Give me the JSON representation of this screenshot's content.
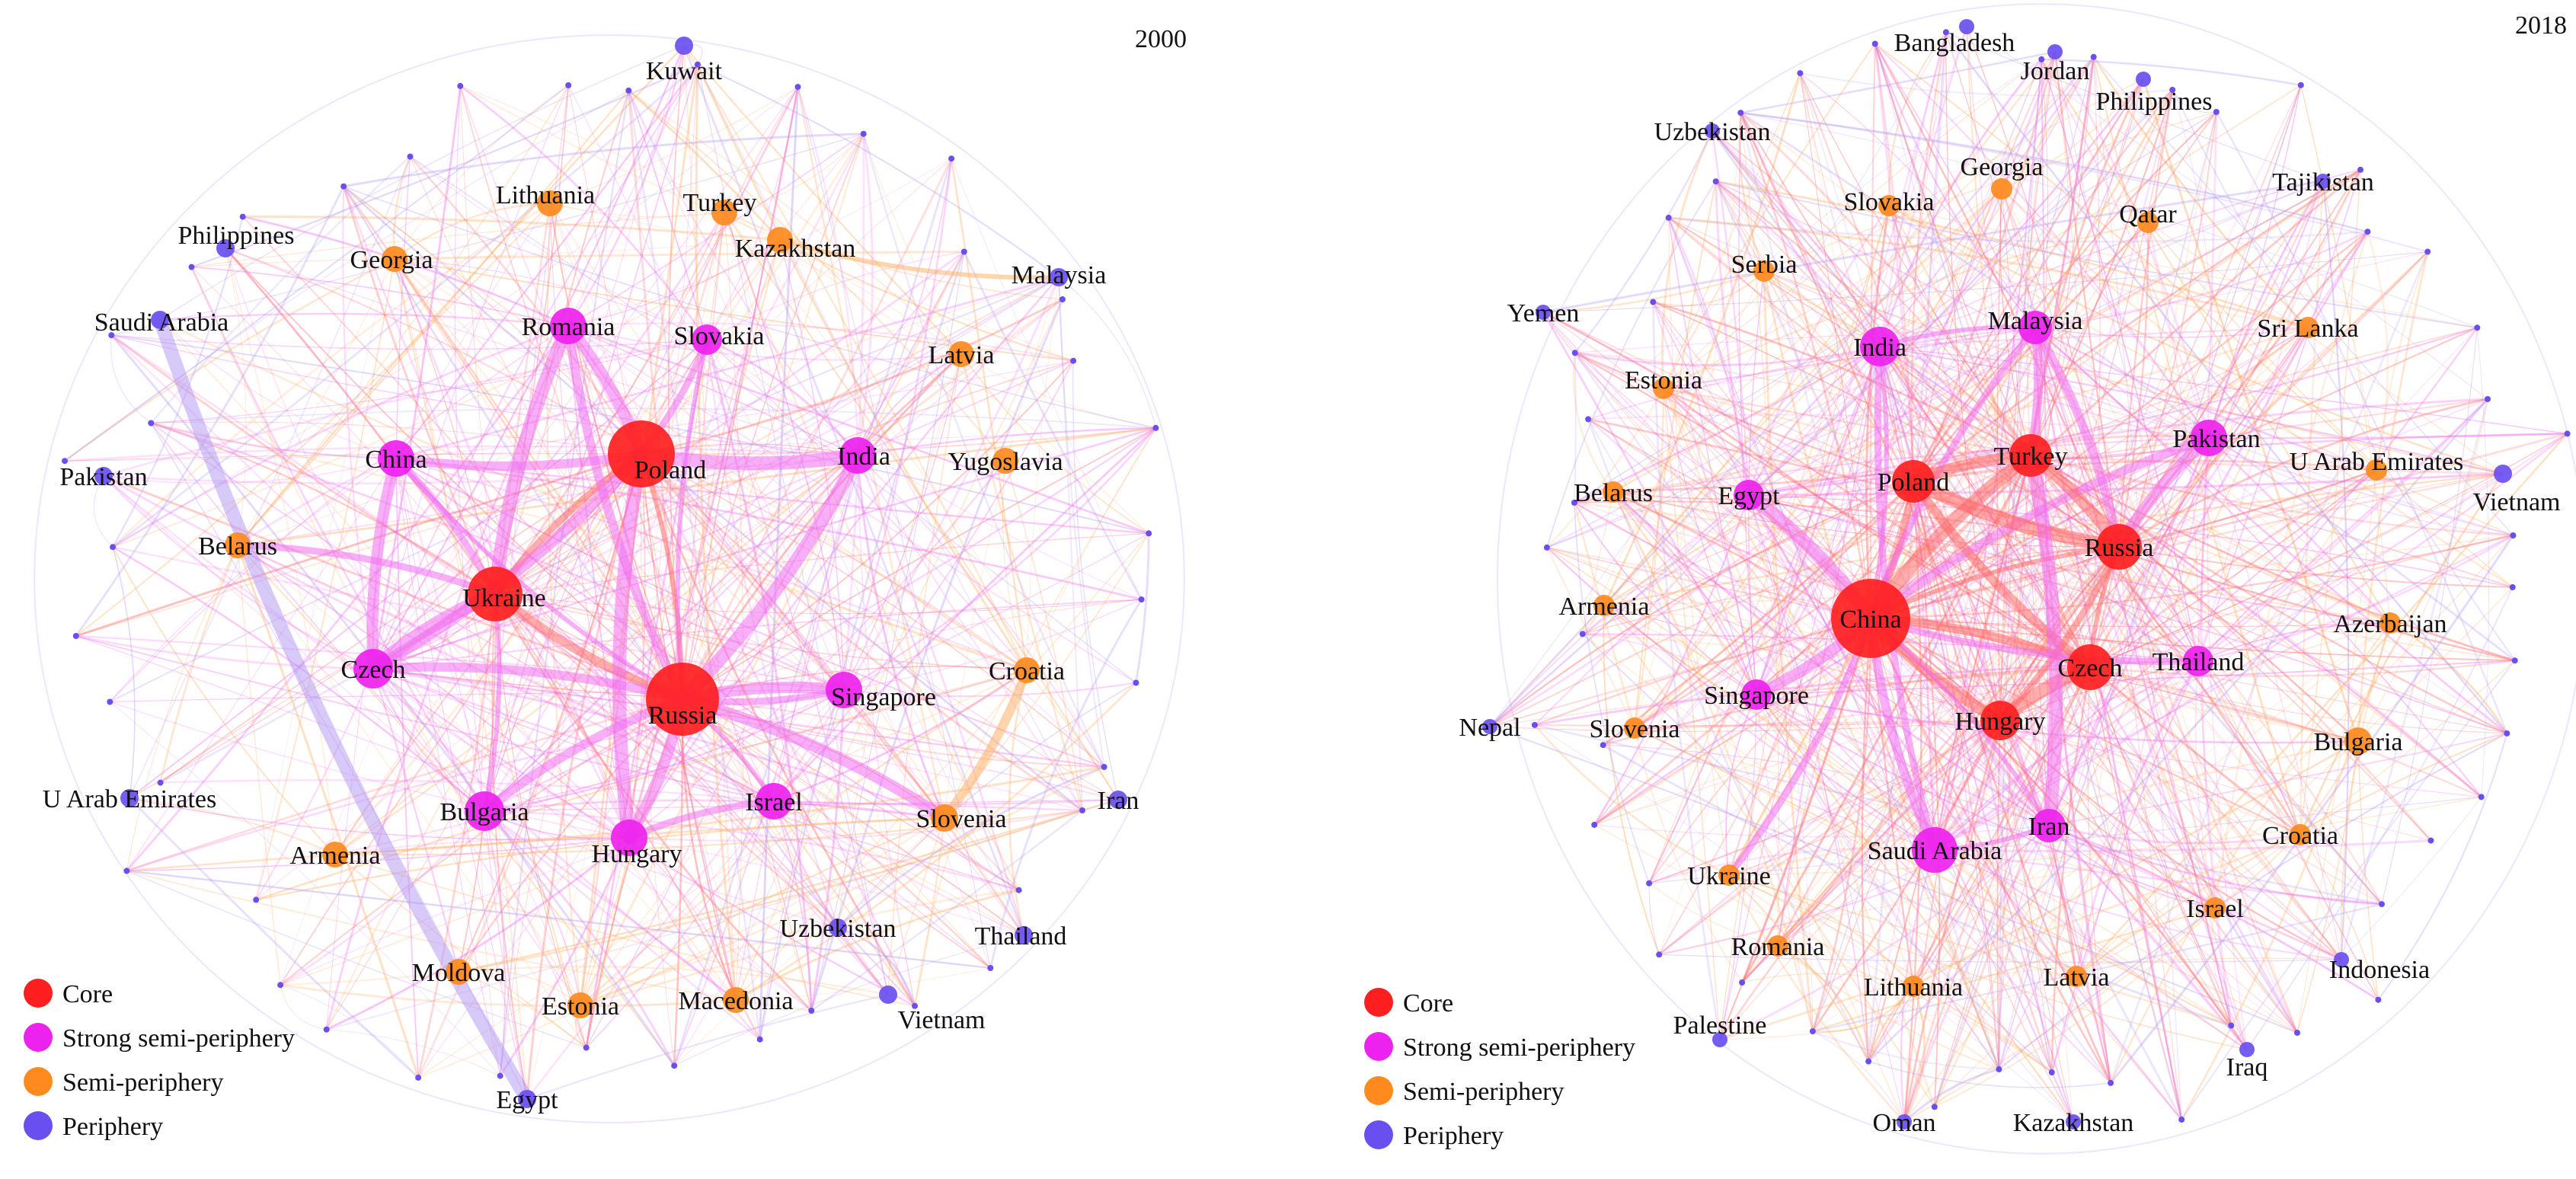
{
  "colors": {
    "core": "#ff1f1f",
    "strong": "#ee22ee",
    "semi": "#ff8a1e",
    "periphery": "#6a4ff0",
    "edge_periphery": "#b79cf2",
    "edge_semi": "#ffb36b",
    "edge_strong": "#f070f0",
    "edge_core": "#ff6a6a"
  },
  "legend": [
    {
      "label": "Core",
      "category": "core"
    },
    {
      "label": "Strong semi-periphery",
      "category": "strong"
    },
    {
      "label": "Semi-periphery",
      "category": "semi"
    },
    {
      "label": "Periphery",
      "category": "periphery"
    }
  ],
  "networks": [
    {
      "year": "2000",
      "nodes": [
        {
          "label": "Kuwait",
          "category": "periphery"
        },
        {
          "label": "Lithuania",
          "category": "semi"
        },
        {
          "label": "Turkey",
          "category": "semi"
        },
        {
          "label": "Philippines",
          "category": "periphery"
        },
        {
          "label": "Georgia",
          "category": "semi"
        },
        {
          "label": "Kazakhstan",
          "category": "semi"
        },
        {
          "label": "Malaysia",
          "category": "periphery"
        },
        {
          "label": "Saudi Arabia",
          "category": "periphery"
        },
        {
          "label": "Romania",
          "category": "strong"
        },
        {
          "label": "Slovakia",
          "category": "strong"
        },
        {
          "label": "Latvia",
          "category": "semi"
        },
        {
          "label": "Pakistan",
          "category": "periphery"
        },
        {
          "label": "China",
          "category": "strong"
        },
        {
          "label": "Poland",
          "category": "core"
        },
        {
          "label": "India",
          "category": "strong"
        },
        {
          "label": "Yugoslavia",
          "category": "semi"
        },
        {
          "label": "Belarus",
          "category": "semi"
        },
        {
          "label": "Ukraine",
          "category": "core"
        },
        {
          "label": "Czech",
          "category": "strong"
        },
        {
          "label": "Russia",
          "category": "core"
        },
        {
          "label": "Singapore",
          "category": "strong"
        },
        {
          "label": "Croatia",
          "category": "semi"
        },
        {
          "label": "U Arab Emirates",
          "category": "periphery"
        },
        {
          "label": "Bulgaria",
          "category": "strong"
        },
        {
          "label": "Israel",
          "category": "strong"
        },
        {
          "label": "Slovenia",
          "category": "semi"
        },
        {
          "label": "Iran",
          "category": "periphery"
        },
        {
          "label": "Armenia",
          "category": "semi"
        },
        {
          "label": "Hungary",
          "category": "strong"
        },
        {
          "label": "Uzbekistan",
          "category": "periphery"
        },
        {
          "label": "Thailand",
          "category": "periphery"
        },
        {
          "label": "Moldova",
          "category": "semi"
        },
        {
          "label": "Estonia",
          "category": "semi"
        },
        {
          "label": "Macedonia",
          "category": "semi"
        },
        {
          "label": "Vietnam",
          "category": "periphery"
        },
        {
          "label": "Egypt",
          "category": "periphery"
        }
      ],
      "strong_links": [
        [
          "Poland",
          "Russia"
        ],
        [
          "Poland",
          "Ukraine"
        ],
        [
          "Russia",
          "Ukraine"
        ],
        [
          "Czech",
          "Poland"
        ],
        [
          "Czech",
          "Ukraine"
        ],
        [
          "China",
          "Russia"
        ],
        [
          "China",
          "Ukraine"
        ],
        [
          "China",
          "Poland"
        ],
        [
          "Russia",
          "Hungary"
        ],
        [
          "Poland",
          "Hungary"
        ],
        [
          "Russia",
          "Slovakia"
        ],
        [
          "Poland",
          "Slovakia"
        ],
        [
          "Russia",
          "Romania"
        ],
        [
          "Poland",
          "Romania"
        ],
        [
          "India",
          "Russia"
        ],
        [
          "Israel",
          "Russia"
        ],
        [
          "Singapore",
          "Russia"
        ],
        [
          "Russia",
          "Bulgaria"
        ],
        [
          "Russia",
          "Singapore"
        ],
        [
          "Poland",
          "India"
        ],
        [
          "Ukraine",
          "Bulgaria"
        ],
        [
          "Ukraine",
          "Belarus"
        ],
        [
          "Czech",
          "Russia"
        ],
        [
          "China",
          "Czech"
        ],
        [
          "Egypt",
          "Saudi Arabia"
        ],
        [
          "Kazakhstan",
          "Malaysia"
        ],
        [
          "Hungary",
          "Israel"
        ],
        [
          "Slovenia",
          "Croatia"
        ],
        [
          "Russia",
          "Slovenia"
        ],
        [
          "Romania",
          "Ukraine"
        ]
      ]
    },
    {
      "year": "2018",
      "nodes": [
        {
          "label": "Bangladesh",
          "category": "periphery"
        },
        {
          "label": "Jordan",
          "category": "periphery"
        },
        {
          "label": "Philippines",
          "category": "periphery"
        },
        {
          "label": "Uzbekistan",
          "category": "periphery"
        },
        {
          "label": "Georgia",
          "category": "semi"
        },
        {
          "label": "Tajikistan",
          "category": "periphery"
        },
        {
          "label": "Slovakia",
          "category": "semi"
        },
        {
          "label": "Qatar",
          "category": "semi"
        },
        {
          "label": "Serbia",
          "category": "semi"
        },
        {
          "label": "Yemen",
          "category": "periphery"
        },
        {
          "label": "Malaysia",
          "category": "strong"
        },
        {
          "label": "Sri Lanka",
          "category": "semi"
        },
        {
          "label": "India",
          "category": "strong"
        },
        {
          "label": "Estonia",
          "category": "semi"
        },
        {
          "label": "Pakistan",
          "category": "strong"
        },
        {
          "label": "Turkey",
          "category": "core"
        },
        {
          "label": "U Arab Emirates",
          "category": "semi"
        },
        {
          "label": "Belarus",
          "category": "semi"
        },
        {
          "label": "Egypt",
          "category": "strong"
        },
        {
          "label": "Poland",
          "category": "core"
        },
        {
          "label": "Vietnam",
          "category": "periphery"
        },
        {
          "label": "Russia",
          "category": "core"
        },
        {
          "label": "Armenia",
          "category": "semi"
        },
        {
          "label": "China",
          "category": "core"
        },
        {
          "label": "Azerbaijan",
          "category": "semi"
        },
        {
          "label": "Thailand",
          "category": "strong"
        },
        {
          "label": "Czech",
          "category": "core"
        },
        {
          "label": "Singapore",
          "category": "strong"
        },
        {
          "label": "Nepal",
          "category": "periphery"
        },
        {
          "label": "Slovenia",
          "category": "semi"
        },
        {
          "label": "Hungary",
          "category": "core"
        },
        {
          "label": "Bulgaria",
          "category": "semi"
        },
        {
          "label": "Iran",
          "category": "strong"
        },
        {
          "label": "Saudi Arabia",
          "category": "strong"
        },
        {
          "label": "Croatia",
          "category": "semi"
        },
        {
          "label": "Ukraine",
          "category": "semi"
        },
        {
          "label": "Israel",
          "category": "semi"
        },
        {
          "label": "Romania",
          "category": "semi"
        },
        {
          "label": "Indonesia",
          "category": "periphery"
        },
        {
          "label": "Lithuania",
          "category": "semi"
        },
        {
          "label": "Latvia",
          "category": "semi"
        },
        {
          "label": "Palestine",
          "category": "periphery"
        },
        {
          "label": "Iraq",
          "category": "periphery"
        },
        {
          "label": "Oman",
          "category": "periphery"
        },
        {
          "label": "Kazakhstan",
          "category": "periphery"
        }
      ],
      "strong_links": [
        [
          "China",
          "Russia"
        ],
        [
          "China",
          "Poland"
        ],
        [
          "China",
          "Czech"
        ],
        [
          "China",
          "Hungary"
        ],
        [
          "China",
          "Turkey"
        ],
        [
          "China",
          "India"
        ],
        [
          "China",
          "Malaysia"
        ],
        [
          "China",
          "Saudi Arabia"
        ],
        [
          "China",
          "Singapore"
        ],
        [
          "China",
          "Egypt"
        ],
        [
          "China",
          "Iran"
        ],
        [
          "China",
          "Thailand"
        ],
        [
          "China",
          "Pakistan"
        ],
        [
          "Russia",
          "Turkey"
        ],
        [
          "Russia",
          "Poland"
        ],
        [
          "Russia",
          "Czech"
        ],
        [
          "Russia",
          "Hungary"
        ],
        [
          "Poland",
          "Czech"
        ],
        [
          "Poland",
          "Turkey"
        ],
        [
          "Czech",
          "Hungary"
        ],
        [
          "India",
          "Malaysia"
        ],
        [
          "India",
          "Saudi Arabia"
        ],
        [
          "Malaysia",
          "Turkey"
        ],
        [
          "Pakistan",
          "Russia"
        ],
        [
          "Turkey",
          "Iran"
        ],
        [
          "Saudi Arabia",
          "Iran"
        ],
        [
          "China",
          "Ukraine"
        ],
        [
          "Russia",
          "Malaysia"
        ]
      ]
    }
  ]
}
